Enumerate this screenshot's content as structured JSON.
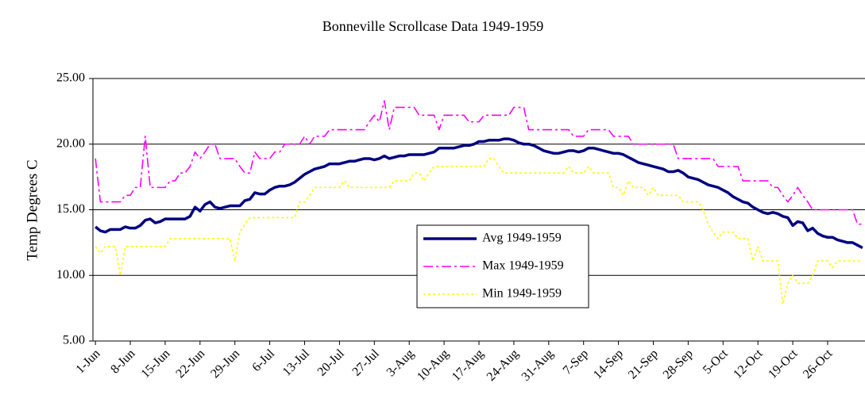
{
  "chart_data": {
    "type": "line",
    "title": "Bonneville Scrollcase Data 1949-1959",
    "y_label": "Temp Degrees C",
    "categories": [
      "1-Jun",
      null,
      null,
      null,
      null,
      null,
      null,
      "8-Jun",
      null,
      null,
      null,
      null,
      null,
      null,
      "15-Jun",
      null,
      null,
      null,
      null,
      null,
      null,
      "22-Jun",
      null,
      null,
      null,
      null,
      null,
      null,
      "29-Jun",
      null,
      null,
      null,
      null,
      null,
      null,
      "6-Jul",
      null,
      null,
      null,
      null,
      null,
      null,
      "13-Jul",
      null,
      null,
      null,
      null,
      null,
      null,
      "20-Jul",
      null,
      null,
      null,
      null,
      null,
      null,
      "27-Jul",
      null,
      null,
      null,
      null,
      null,
      null,
      "3-Aug",
      null,
      null,
      null,
      null,
      null,
      null,
      "10-Aug",
      null,
      null,
      null,
      null,
      null,
      null,
      "17-Aug",
      null,
      null,
      null,
      null,
      null,
      null,
      "24-Aug",
      null,
      null,
      null,
      null,
      null,
      null,
      "31-Aug",
      null,
      null,
      null,
      null,
      null,
      null,
      "7-Sep",
      null,
      null,
      null,
      null,
      null,
      null,
      "14-Sep",
      null,
      null,
      null,
      null,
      null,
      null,
      "21-Sep",
      null,
      null,
      null,
      null,
      null,
      null,
      "28-Sep",
      null,
      null,
      null,
      null,
      null,
      null,
      "5-Oct",
      null,
      null,
      null,
      null,
      null,
      null,
      "12-Oct",
      null,
      null,
      null,
      null,
      null,
      null,
      "19-Oct",
      null,
      null,
      null,
      null,
      null,
      null,
      "26-Oct",
      null,
      null,
      null,
      null,
      null,
      null,
      null
    ],
    "series": [
      {
        "name": "Avg 1949-1959",
        "color": "#000080",
        "style": "solid",
        "values": [
          13.7,
          13.4,
          13.3,
          13.5,
          13.5,
          13.5,
          13.7,
          13.6,
          13.6,
          13.8,
          14.2,
          14.3,
          14.0,
          14.1,
          14.3,
          14.3,
          14.3,
          14.3,
          14.3,
          14.5,
          15.2,
          14.9,
          15.4,
          15.6,
          15.2,
          15.1,
          15.2,
          15.3,
          15.3,
          15.3,
          15.7,
          15.8,
          16.3,
          16.2,
          16.2,
          16.5,
          16.7,
          16.8,
          16.8,
          16.9,
          17.1,
          17.4,
          17.7,
          17.9,
          18.1,
          18.2,
          18.3,
          18.5,
          18.5,
          18.5,
          18.6,
          18.7,
          18.7,
          18.8,
          18.9,
          18.9,
          18.8,
          18.9,
          19.1,
          18.9,
          19.0,
          19.1,
          19.1,
          19.2,
          19.2,
          19.2,
          19.2,
          19.3,
          19.4,
          19.7,
          19.7,
          19.7,
          19.7,
          19.8,
          19.9,
          19.9,
          20.0,
          20.2,
          20.2,
          20.3,
          20.3,
          20.3,
          20.4,
          20.4,
          20.3,
          20.1,
          20.0,
          20.0,
          19.9,
          19.7,
          19.5,
          19.4,
          19.3,
          19.3,
          19.4,
          19.5,
          19.5,
          19.4,
          19.5,
          19.7,
          19.7,
          19.6,
          19.5,
          19.4,
          19.3,
          19.3,
          19.2,
          19.0,
          18.8,
          18.6,
          18.5,
          18.4,
          18.3,
          18.2,
          18.1,
          17.9,
          17.9,
          18.0,
          17.8,
          17.5,
          17.4,
          17.3,
          17.1,
          16.9,
          16.8,
          16.7,
          16.5,
          16.3,
          16.0,
          15.8,
          15.6,
          15.5,
          15.2,
          15.0,
          14.8,
          14.7,
          14.8,
          14.7,
          14.5,
          14.4,
          13.8,
          14.1,
          14.0,
          13.4,
          13.6,
          13.2,
          13.0,
          12.9,
          12.9,
          12.7,
          12.6,
          12.5,
          12.5,
          12.3,
          12.1
        ]
      },
      {
        "name": "Max 1949-1959",
        "color": "#ff00ff",
        "style": "dashdot",
        "values": [
          18.9,
          15.6,
          15.6,
          15.6,
          15.6,
          15.6,
          16.1,
          16.1,
          16.7,
          16.7,
          20.6,
          16.7,
          16.7,
          16.7,
          16.7,
          17.2,
          17.2,
          17.8,
          17.8,
          18.3,
          19.4,
          18.9,
          19.4,
          20.0,
          20.0,
          18.9,
          18.9,
          18.9,
          18.9,
          18.3,
          17.8,
          17.8,
          19.4,
          18.9,
          18.9,
          18.9,
          19.4,
          19.4,
          20.0,
          20.0,
          20.0,
          20.0,
          20.6,
          20.0,
          20.6,
          20.6,
          20.6,
          21.1,
          21.1,
          21.1,
          21.1,
          21.1,
          21.1,
          21.1,
          21.1,
          21.7,
          22.2,
          21.7,
          23.3,
          21.1,
          22.8,
          22.8,
          22.8,
          22.8,
          22.8,
          22.2,
          22.2,
          22.2,
          22.2,
          21.1,
          22.2,
          22.2,
          22.2,
          22.2,
          22.2,
          21.7,
          21.7,
          21.7,
          22.2,
          22.2,
          22.2,
          22.2,
          22.2,
          22.2,
          22.8,
          22.8,
          22.8,
          21.1,
          21.1,
          21.1,
          21.1,
          21.1,
          21.1,
          21.1,
          21.1,
          21.1,
          20.6,
          20.6,
          20.6,
          21.1,
          21.1,
          21.1,
          21.1,
          21.1,
          20.6,
          20.6,
          20.6,
          20.6,
          20.0,
          20.0,
          20.0,
          20.0,
          20.0,
          20.0,
          20.0,
          20.0,
          20.0,
          18.9,
          18.9,
          18.9,
          18.9,
          18.9,
          18.9,
          18.9,
          18.9,
          18.3,
          18.3,
          18.3,
          18.3,
          18.3,
          17.2,
          17.2,
          17.2,
          17.2,
          17.2,
          17.2,
          16.7,
          16.7,
          16.1,
          15.6,
          16.1,
          16.7,
          16.1,
          15.6,
          15.0,
          15.0,
          15.0,
          15.0,
          15.0,
          15.0,
          15.0,
          15.0,
          15.0,
          13.9,
          13.9
        ]
      },
      {
        "name": "Min 1949-1959",
        "color": "#ffff00",
        "style": "dotted",
        "values": [
          12.2,
          11.7,
          12.2,
          12.2,
          12.2,
          10.0,
          12.2,
          12.2,
          12.2,
          12.2,
          12.2,
          12.2,
          12.2,
          12.2,
          12.2,
          12.8,
          12.8,
          12.8,
          12.8,
          12.8,
          12.8,
          12.8,
          12.8,
          12.8,
          12.8,
          12.8,
          12.8,
          12.8,
          11.1,
          13.3,
          13.9,
          14.4,
          14.4,
          14.4,
          14.4,
          14.4,
          14.4,
          14.4,
          14.4,
          14.4,
          14.4,
          15.6,
          15.6,
          16.1,
          16.7,
          16.7,
          16.7,
          16.7,
          16.7,
          16.7,
          17.2,
          16.7,
          16.7,
          16.7,
          16.7,
          16.7,
          16.7,
          16.7,
          16.7,
          16.7,
          17.2,
          17.2,
          17.2,
          17.2,
          17.8,
          17.8,
          17.2,
          17.8,
          18.3,
          18.3,
          18.3,
          18.3,
          18.3,
          18.3,
          18.3,
          18.3,
          18.3,
          18.3,
          18.3,
          18.9,
          18.9,
          18.3,
          17.8,
          17.8,
          17.8,
          17.8,
          17.8,
          17.8,
          17.8,
          17.8,
          17.8,
          17.8,
          17.8,
          17.8,
          17.8,
          18.3,
          17.8,
          17.8,
          17.8,
          18.3,
          17.8,
          17.8,
          17.8,
          17.8,
          16.7,
          16.7,
          16.1,
          17.2,
          16.7,
          16.7,
          16.7,
          16.1,
          16.7,
          16.1,
          16.1,
          16.1,
          16.1,
          16.1,
          15.6,
          15.6,
          15.6,
          15.6,
          15.0,
          13.9,
          13.3,
          12.8,
          13.3,
          13.3,
          13.3,
          12.8,
          12.8,
          12.8,
          11.1,
          12.2,
          11.1,
          11.1,
          11.1,
          11.1,
          7.8,
          9.4,
          10.0,
          9.4,
          9.4,
          9.4,
          10.0,
          11.1,
          11.1,
          11.1,
          10.6,
          11.1,
          11.1,
          11.1,
          11.1,
          11.1,
          11.1
        ]
      }
    ],
    "ylim": [
      5,
      25
    ],
    "yticks": [
      {
        "value": 5,
        "label": "5.00"
      },
      {
        "value": 10,
        "label": "10.00"
      },
      {
        "value": 15,
        "label": "15.00"
      },
      {
        "value": 20,
        "label": "20.00"
      },
      {
        "value": 25,
        "label": "25.00"
      }
    ],
    "grid": true
  }
}
